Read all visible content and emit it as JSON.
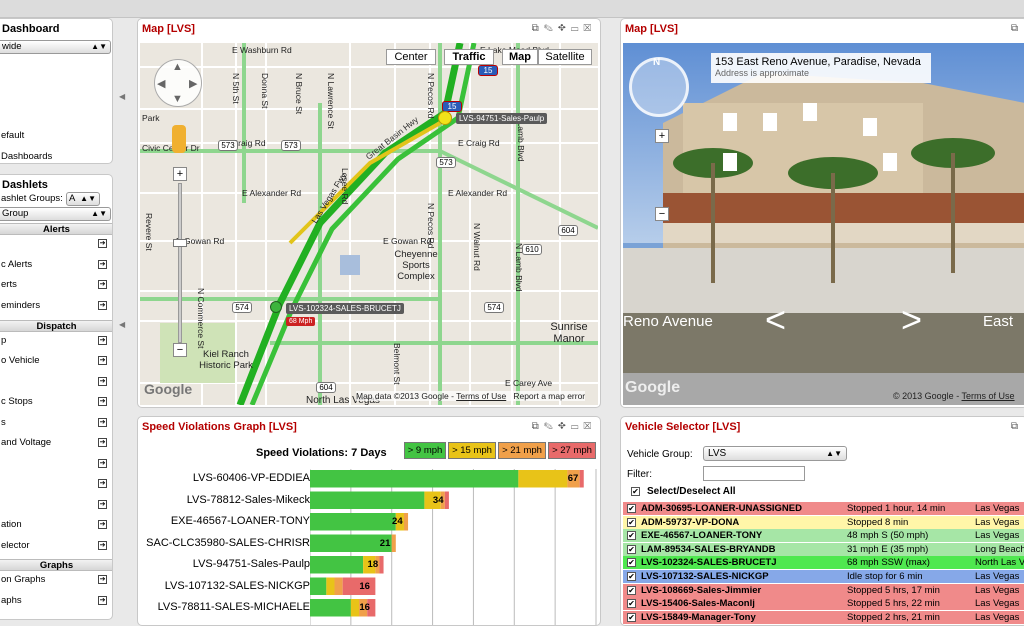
{
  "sidebar1": {
    "title": "Dashboard",
    "select_value": "wide",
    "items": [
      "efault",
      "Dashboards"
    ]
  },
  "sidebar2": {
    "title": "Dashlets",
    "groups_label": "ashlet Groups:",
    "groups_value": "A",
    "group_select": "Group",
    "sections": [
      {
        "name": "Alerts",
        "items": [
          "",
          "c Alerts",
          "erts",
          "eminders"
        ]
      },
      {
        "name": "Dispatch",
        "items": [
          "p",
          "o Vehicle",
          "",
          "c Stops",
          "s",
          "and Voltage",
          "",
          "",
          "",
          "ation",
          "elector"
        ]
      },
      {
        "name": "Graphs",
        "items": [
          "on Graphs",
          "aphs"
        ]
      }
    ]
  },
  "map_panel": {
    "title": "Map  [LVS]",
    "buttons": {
      "center": "Center",
      "traffic": "Traffic",
      "map": "Map",
      "satellite": "Satellite"
    },
    "streets": [
      "E Washburn Rd",
      "E Craig Rd",
      "E Alexander Rd",
      "E Gowan Rd",
      "E Gowan Rd",
      "E Alexander Rd",
      "E Craig Rd",
      "E Carey Ave",
      "Cheyenne Sports Complex",
      "Sunrise Manor",
      "Kiel Ranch Historic Park",
      "Las Vegas Fwy",
      "Great Basin Hwy",
      "N 5th St",
      "N Pecos Rd",
      "N Lamb Blvd",
      "N Walnut Rd",
      "N Commerce St",
      "Belmont St",
      "Losee Rd",
      "Donna St",
      "N Bruce St",
      "N Lawrence St",
      "N Pecos Rd",
      "N Lamb Blvd",
      "Revere St",
      "E Lake Mead Blvd",
      "North Las Vegas",
      "Park",
      "Civic Center Dr"
    ],
    "shields": [
      "573",
      "573",
      "573",
      "574",
      "574",
      "604",
      "610",
      "604",
      "15",
      "15"
    ],
    "markers": [
      {
        "label": "LVS-94751-Sales-Paulp",
        "speed": ""
      },
      {
        "label": "LVS-102324-SALES-BRUCETJ",
        "speed": "68 Mph"
      }
    ],
    "footer": {
      "data": "Map data ©2013 Google",
      "terms": "Terms of Use",
      "report": "Report a map error",
      "logo": "Google"
    }
  },
  "street_panel": {
    "title": "Map  [LVS]",
    "address": "153 East Reno Avenue, Paradise, Nevada",
    "approx": "Address is approximate",
    "street_left": "Reno Avenue",
    "street_right": "East",
    "logo": "Google",
    "copyright": "© 2013 Google",
    "terms": "Terms of Use"
  },
  "speed_panel": {
    "title": "Speed Violations Graph  [LVS]",
    "graph_title": "Speed Violations: 7 Days",
    "legend": [
      {
        "label": "> 9 mph",
        "color": "#43c443"
      },
      {
        "label": "> 15 mph",
        "color": "#e8c318"
      },
      {
        "label": "> 21 mph",
        "color": "#f0a04a"
      },
      {
        "label": "> 27 mph",
        "color": "#e86a6a"
      }
    ]
  },
  "chart_data": {
    "type": "bar",
    "orientation": "horizontal-stacked",
    "title": "Speed Violations: 7 Days",
    "categories": [
      "LVS-60406-VP-EDDIEA",
      "LVS-78812-Sales-Mikeck",
      "EXE-46567-LOANER-TONY",
      "SAC-CLC35980-SALES-CHRISR",
      "LVS-94751-Sales-Paulp",
      "LVS-107132-SALES-NICKGP",
      "LVS-78811-SALES-MICHAELE"
    ],
    "totals": [
      67,
      34,
      24,
      21,
      18,
      16,
      16
    ],
    "series": [
      {
        "name": "> 9 mph",
        "values": [
          51,
          28,
          21,
          20,
          13,
          4,
          10
        ]
      },
      {
        "name": "> 15 mph",
        "values": [
          12,
          4,
          2,
          0,
          3,
          2,
          2
        ]
      },
      {
        "name": "> 21 mph",
        "values": [
          3,
          1,
          1,
          1,
          1,
          2,
          2
        ]
      },
      {
        "name": "> 27 mph",
        "values": [
          1,
          1,
          0,
          0,
          1,
          8,
          2
        ]
      }
    ],
    "xlim": [
      0,
      70
    ]
  },
  "vehicle_panel": {
    "title": "Vehicle Selector  [LVS]",
    "group_label": "Vehicle Group:",
    "group_value": "LVS",
    "filter_label": "Filter:",
    "select_all": "Select/Deselect All",
    "rows": [
      {
        "name": "ADM-30695-LOANER-UNASSIGNED",
        "status": "Stopped 1 hour, 14 min",
        "loc": "Las Vegas",
        "color": "#f08a8a"
      },
      {
        "name": "ADM-59737-VP-DONA",
        "status": "Stopped 8 min",
        "loc": "Las Vegas",
        "color": "#fff6a8"
      },
      {
        "name": "EXE-46567-LOANER-TONY",
        "status": "48 mph S (50 mph)",
        "loc": "Las Vegas",
        "color": "#a6e6a6"
      },
      {
        "name": "LAM-89534-SALES-BRYANDB",
        "status": "31 mph E (35 mph)",
        "loc": "Long Beach",
        "color": "#a6e6a6"
      },
      {
        "name": "LVS-102324-SALES-BRUCETJ",
        "status": "68 mph SSW (max)",
        "loc": "North Las V",
        "color": "#4fe84f"
      },
      {
        "name": "LVS-107132-SALES-NICKGP",
        "status": "Idle stop for 6 min",
        "loc": "Las Vegas",
        "color": "#86a8e8"
      },
      {
        "name": "LVS-108669-Sales-Jimmier",
        "status": "Stopped 5 hrs, 17 min",
        "loc": "Las Vegas",
        "color": "#f08a8a"
      },
      {
        "name": "LVS-15406-Sales-Maconlj",
        "status": "Stopped 5 hrs, 22 min",
        "loc": "Las Vegas",
        "color": "#f08a8a"
      },
      {
        "name": "LVS-15849-Manager-Tony",
        "status": "Stopped 2 hrs, 21 min",
        "loc": "Las Vegas",
        "color": "#f08a8a"
      }
    ]
  }
}
